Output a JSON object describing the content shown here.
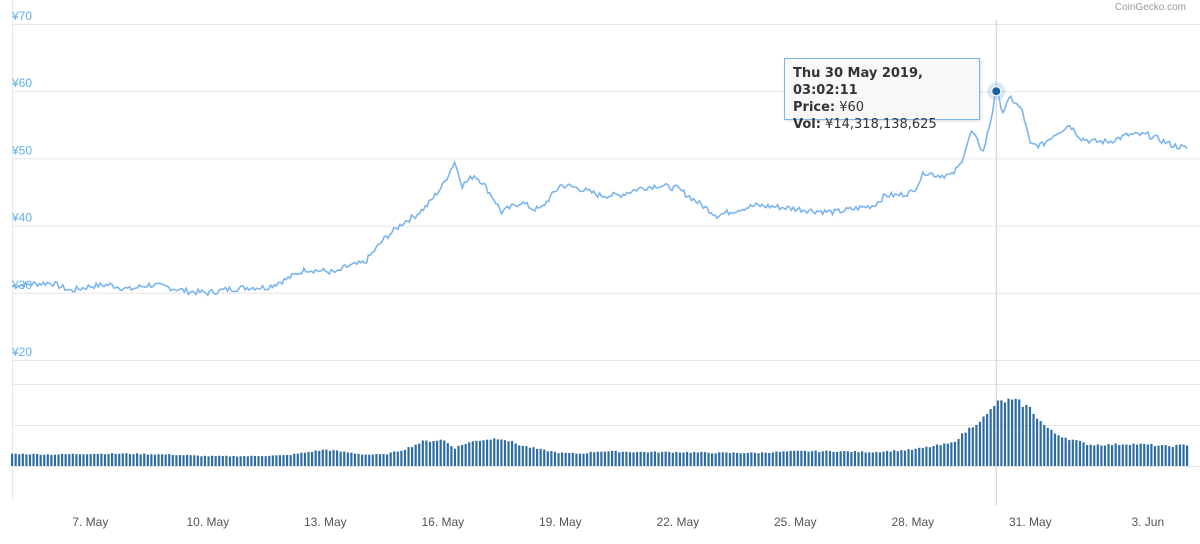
{
  "credit": "CoinGecko.com",
  "tooltip": {
    "date": "Thu 30 May 2019, 03:02:11",
    "price_label": "Price:",
    "price_value": "¥60",
    "vol_label": "Vol:",
    "vol_value": "¥14,318,138,625"
  },
  "colors": {
    "line": "#7cb5ec",
    "volume": "#2d6da3",
    "grid": "#e6e6e6",
    "marker": "#1f5f9e"
  },
  "chart_data": {
    "type": "line",
    "currency": "JPY",
    "y_ticks": [
      "¥20",
      "¥30",
      "¥40",
      "¥50",
      "¥60",
      "¥70"
    ],
    "y_tick_values": [
      20,
      30,
      40,
      50,
      60,
      70
    ],
    "ylim": [
      20,
      70
    ],
    "x_ticks": [
      "7. May",
      "10. May",
      "13. May",
      "16. May",
      "19. May",
      "22. May",
      "25. May",
      "28. May",
      "31. May",
      "3. Jun"
    ],
    "x_tick_days": [
      7,
      10,
      13,
      16,
      19,
      22,
      25,
      28,
      31,
      34
    ],
    "xlim_days": [
      5.0,
      35.0
    ],
    "price_series": {
      "x": [
        5.0,
        5.5,
        6.0,
        6.5,
        7.0,
        7.5,
        8.0,
        8.5,
        9.0,
        9.5,
        10.0,
        10.5,
        11.0,
        11.5,
        12.0,
        12.5,
        13.0,
        13.3,
        13.5,
        14.0,
        14.5,
        15.0,
        15.3,
        15.6,
        16.0,
        16.3,
        16.5,
        16.8,
        17.0,
        17.3,
        17.5,
        18.0,
        18.3,
        18.5,
        19.0,
        19.3,
        19.5,
        20.0,
        20.5,
        21.0,
        21.5,
        22.0,
        22.5,
        23.0,
        23.3,
        23.6,
        24.0,
        24.5,
        25.0,
        25.5,
        26.0,
        26.5,
        27.0,
        27.3,
        27.6,
        28.0,
        28.3,
        28.6,
        29.0,
        29.2,
        29.5,
        29.8,
        30.0,
        30.13,
        30.3,
        30.5,
        30.8,
        31.0,
        31.3,
        31.6,
        32.0,
        32.3,
        32.6,
        33.0,
        33.5,
        34.0,
        34.3,
        34.6,
        35.0
      ],
      "y": [
        31.0,
        31.3,
        31.5,
        30.3,
        31.0,
        31.2,
        30.5,
        31.2,
        30.8,
        30.2,
        30.0,
        30.5,
        30.8,
        30.8,
        32.0,
        33.5,
        33.2,
        33.0,
        33.8,
        34.5,
        38.0,
        40.5,
        41.5,
        43.0,
        46.0,
        49.5,
        46.0,
        47.5,
        46.5,
        44.0,
        42.0,
        43.5,
        42.5,
        42.5,
        46.0,
        45.8,
        45.5,
        44.5,
        44.5,
        45.5,
        46.0,
        45.5,
        43.5,
        41.5,
        42.0,
        42.5,
        43.0,
        42.8,
        42.5,
        42.2,
        42.0,
        42.5,
        43.0,
        44.5,
        44.5,
        45.0,
        48.0,
        47.5,
        47.5,
        49.0,
        54.0,
        51.0,
        56.0,
        60.0,
        57.0,
        59.0,
        57.0,
        52.0,
        52.0,
        53.5,
        55.0,
        53.0,
        52.5,
        52.5,
        53.5,
        53.5,
        52.8,
        52.0,
        51.5
      ]
    },
    "volume_series": {
      "x": [
        5.0,
        6.0,
        7.0,
        8.0,
        9.0,
        10.0,
        11.0,
        12.0,
        13.0,
        14.0,
        14.5,
        15.0,
        15.5,
        16.0,
        16.3,
        16.6,
        17.0,
        17.5,
        18.0,
        18.5,
        19.0,
        19.5,
        20.0,
        21.0,
        22.0,
        23.0,
        24.0,
        25.0,
        26.0,
        27.0,
        28.0,
        28.5,
        29.0,
        29.3,
        29.6,
        29.9,
        30.1,
        30.4,
        30.7,
        31.0,
        31.3,
        31.6,
        32.0,
        32.5,
        33.0,
        33.5,
        34.0,
        34.5,
        35.0
      ],
      "rel": [
        0.15,
        0.14,
        0.15,
        0.15,
        0.14,
        0.12,
        0.12,
        0.13,
        0.2,
        0.14,
        0.14,
        0.2,
        0.3,
        0.32,
        0.22,
        0.28,
        0.32,
        0.34,
        0.25,
        0.2,
        0.16,
        0.15,
        0.18,
        0.17,
        0.17,
        0.16,
        0.16,
        0.18,
        0.18,
        0.17,
        0.2,
        0.24,
        0.28,
        0.4,
        0.52,
        0.62,
        0.76,
        0.8,
        0.78,
        0.7,
        0.52,
        0.4,
        0.33,
        0.26,
        0.26,
        0.27,
        0.26,
        0.24,
        0.26
      ]
    },
    "highlight": {
      "x": 30.13,
      "y": 60
    },
    "grid": true,
    "legend": "none"
  }
}
